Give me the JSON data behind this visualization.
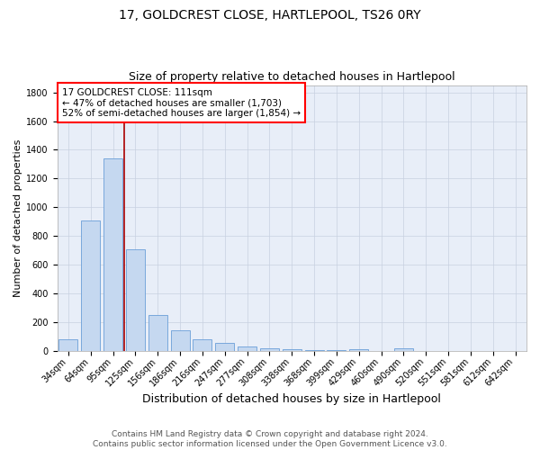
{
  "title": "17, GOLDCREST CLOSE, HARTLEPOOL, TS26 0RY",
  "subtitle": "Size of property relative to detached houses in Hartlepool",
  "xlabel": "Distribution of detached houses by size in Hartlepool",
  "ylabel": "Number of detached properties",
  "categories": [
    "34sqm",
    "64sqm",
    "95sqm",
    "125sqm",
    "156sqm",
    "186sqm",
    "216sqm",
    "247sqm",
    "277sqm",
    "308sqm",
    "338sqm",
    "368sqm",
    "399sqm",
    "429sqm",
    "460sqm",
    "490sqm",
    "520sqm",
    "551sqm",
    "581sqm",
    "612sqm",
    "642sqm"
  ],
  "values": [
    85,
    910,
    1340,
    710,
    250,
    148,
    82,
    57,
    30,
    20,
    12,
    8,
    5,
    15,
    0,
    20,
    0,
    0,
    0,
    0,
    0
  ],
  "bar_color": "#c5d8f0",
  "bar_edgecolor": "#6a9fd8",
  "vline_x": 2.5,
  "vline_color": "#aa0000",
  "annotation_text": "17 GOLDCREST CLOSE: 111sqm\n← 47% of detached houses are smaller (1,703)\n52% of semi-detached houses are larger (1,854) →",
  "ylim": [
    0,
    1850
  ],
  "yticks": [
    0,
    200,
    400,
    600,
    800,
    1000,
    1200,
    1400,
    1600,
    1800
  ],
  "bg_color": "#e8eef8",
  "footer": "Contains HM Land Registry data © Crown copyright and database right 2024.\nContains public sector information licensed under the Open Government Licence v3.0.",
  "title_fontsize": 10,
  "subtitle_fontsize": 9,
  "xlabel_fontsize": 9,
  "ylabel_fontsize": 8,
  "tick_fontsize": 7,
  "annotation_fontsize": 7.5,
  "footer_fontsize": 6.5
}
